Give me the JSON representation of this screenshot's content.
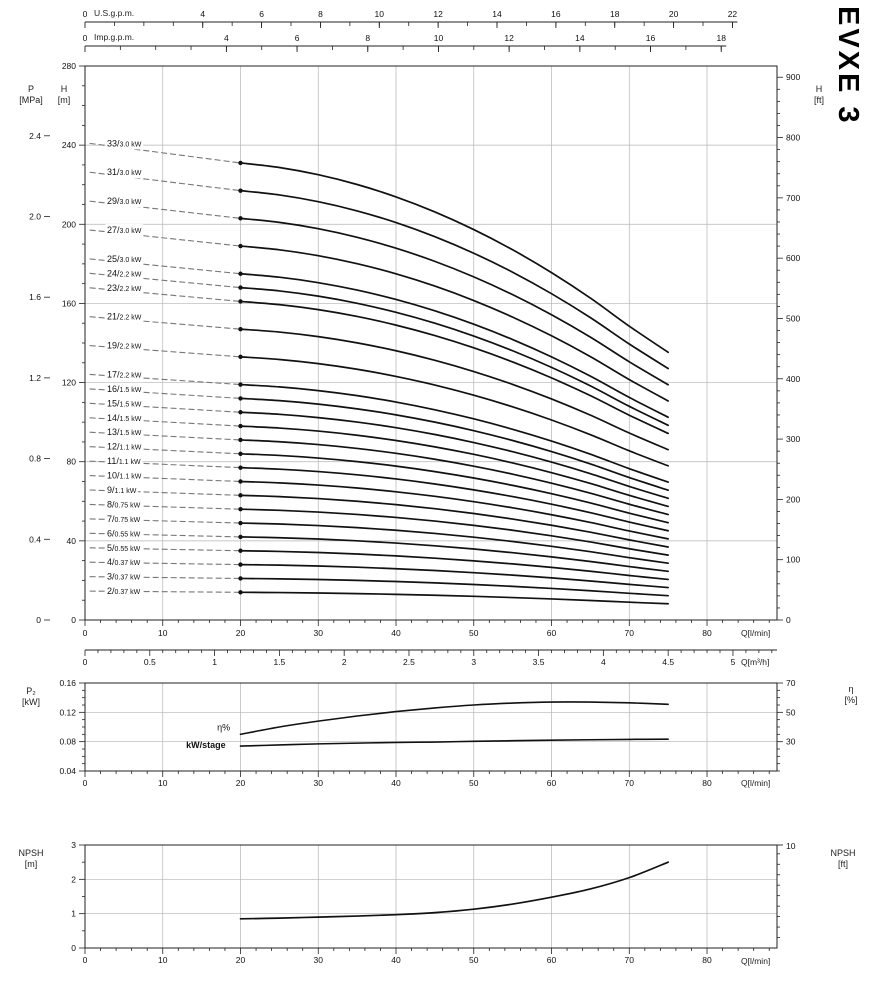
{
  "labels": {
    "model": "EVXE 3",
    "p": "P",
    "p_unit": "[MPa]",
    "h": "H",
    "h_m_unit": "[m]",
    "h_ft_unit": "[ft]",
    "p2": "P₂",
    "p2_unit": "[kW]",
    "eta": "η",
    "eta_unit": "[%]",
    "npsh": "NPSH",
    "npsh_m_unit": "[m]",
    "npsh_ft_unit": "[ft]",
    "q_lmin": "Q[l/min]",
    "q_m3h": "Q[m³/h]",
    "us": "U.S.g.p.m.",
    "imp": "Imp.g.p.m."
  },
  "style": {
    "bg": "#ffffff",
    "curve": "#111111",
    "grid": "#b5b5b5",
    "axis": "#222222",
    "dash": "#777777",
    "text": "#111111"
  },
  "top_axes": {
    "us": {
      "title": "U.S.g.p.m.",
      "ticks": [
        0,
        4,
        6,
        8,
        10,
        12,
        14,
        16,
        18,
        20,
        22
      ],
      "lmin_per_unit": 3.785
    },
    "imp": {
      "title": "Imp.g.p.m.",
      "ticks": [
        0,
        4,
        6,
        8,
        10,
        12,
        14,
        16,
        18
      ],
      "lmin_per_unit": 4.546
    }
  },
  "chart_data": [
    {
      "id": "head-curves",
      "type": "line",
      "title": "EVXE 3 multistage pump head curves",
      "x_axis": {
        "label": "Q[l/min]",
        "min": 0,
        "max": 89,
        "ticks": [
          0,
          10,
          20,
          30,
          40,
          50,
          60,
          70,
          80
        ],
        "minor_step": 2
      },
      "x_axis2": {
        "label": "Q[m³/h]",
        "ticks": [
          0,
          0.5,
          1,
          1.5,
          2,
          2.5,
          3,
          3.5,
          4,
          4.5,
          5
        ],
        "tick_labels": [
          "0",
          "0.5",
          "1",
          "1.5",
          "2",
          "2.5",
          "3",
          "3.5",
          "4",
          "4.5",
          "5"
        ],
        "lmin_per_unit": 16.667,
        "minor_step": 0.1
      },
      "y_axis_left": {
        "label": "H [m]",
        "min": 0,
        "max": 280,
        "ticks": [
          0,
          40,
          80,
          120,
          160,
          200,
          240,
          280
        ],
        "minor_step": 10
      },
      "y_axis_left_outer": {
        "label": "P [MPa]",
        "ticks": [
          0,
          0.4,
          0.8,
          1.2,
          1.6,
          2.0,
          2.4
        ],
        "tick_labels": [
          "0",
          "0.4",
          "0.8",
          "1.2",
          "1.6",
          "2.0",
          "2.4"
        ],
        "m_per_unit": 101.97
      },
      "y_axis_right": {
        "label": "H [ft]",
        "ticks": [
          0,
          100,
          200,
          300,
          400,
          500,
          600,
          700,
          800,
          900
        ],
        "minor_step": 20,
        "m_per_ft": 0.3048
      },
      "flow_lmin": [
        20,
        25,
        30,
        35,
        40,
        45,
        50,
        55,
        60,
        65,
        70,
        75
      ],
      "head_per_stage_m": [
        7.0,
        6.93,
        6.82,
        6.67,
        6.48,
        6.25,
        5.98,
        5.67,
        5.32,
        4.93,
        4.5,
        4.1
      ],
      "label_line_head_per_stage_m": 7.3,
      "curve_start_marker_lmin": 20,
      "curves": [
        {
          "stages": 33,
          "power": "3.0 kW"
        },
        {
          "stages": 31,
          "power": "3.0 kW"
        },
        {
          "stages": 29,
          "power": "3.0 kW"
        },
        {
          "stages": 27,
          "power": "3.0 kW"
        },
        {
          "stages": 25,
          "power": "3.0 kW"
        },
        {
          "stages": 24,
          "power": "2.2 kW"
        },
        {
          "stages": 23,
          "power": "2.2 kW"
        },
        {
          "stages": 21,
          "power": "2.2 kW"
        },
        {
          "stages": 19,
          "power": "2.2 kW"
        },
        {
          "stages": 17,
          "power": "2.2 kW"
        },
        {
          "stages": 16,
          "power": "1.5 kW"
        },
        {
          "stages": 15,
          "power": "1.5 kW"
        },
        {
          "stages": 14,
          "power": "1.5 kW"
        },
        {
          "stages": 13,
          "power": "1.5 kW"
        },
        {
          "stages": 12,
          "power": "1.1 kW"
        },
        {
          "stages": 11,
          "power": "1.1 kW"
        },
        {
          "stages": 10,
          "power": "1.1 kW"
        },
        {
          "stages": 9,
          "power": "1.1 kW"
        },
        {
          "stages": 8,
          "power": "0.75 kW"
        },
        {
          "stages": 7,
          "power": "0.75 kW"
        },
        {
          "stages": 6,
          "power": "0.55 kW"
        },
        {
          "stages": 5,
          "power": "0.55 kW"
        },
        {
          "stages": 4,
          "power": "0.37 kW"
        },
        {
          "stages": 3,
          "power": "0.37 kW"
        },
        {
          "stages": 2,
          "power": "0.37 kW"
        }
      ]
    },
    {
      "id": "power-efficiency",
      "type": "line",
      "x_axis": {
        "label": "Q[l/min]",
        "min": 0,
        "max": 89,
        "ticks": [
          0,
          10,
          20,
          30,
          40,
          50,
          60,
          70,
          80
        ],
        "minor_step": 2
      },
      "y_axis_left": {
        "label": "P₂ [kW]",
        "min": 0.04,
        "max": 0.16,
        "ticks": [
          0.04,
          0.08,
          0.12,
          0.16
        ],
        "tick_labels": [
          "0.04",
          "0.08",
          "0.12",
          "0.16"
        ],
        "minor_step": 0.01
      },
      "y_axis_right": {
        "label": "η [%]",
        "min": 10,
        "max": 70,
        "ticks": [
          30,
          50,
          70
        ],
        "minor_step": 5
      },
      "x": [
        20,
        25,
        30,
        35,
        40,
        45,
        50,
        55,
        60,
        65,
        70,
        75
      ],
      "series": [
        {
          "name": "η%",
          "axis": "right",
          "values": [
            35,
            40,
            44,
            47.5,
            50.5,
            53,
            55,
            56.3,
            57,
            57,
            56.5,
            55.5
          ]
        },
        {
          "name": "kW/stage",
          "axis": "left",
          "values": [
            0.074,
            0.0755,
            0.077,
            0.078,
            0.079,
            0.0795,
            0.0805,
            0.0813,
            0.082,
            0.0826,
            0.0831,
            0.0834
          ]
        }
      ],
      "annotations": [
        {
          "text": "η%",
          "q": 17,
          "kw": 0.095,
          "bold": false
        },
        {
          "text": "kW/stage",
          "q": 13,
          "kw": 0.0715,
          "bold": true
        }
      ]
    },
    {
      "id": "npsh",
      "type": "line",
      "x_axis": {
        "label": "Q[l/min]",
        "min": 0,
        "max": 89,
        "ticks": [
          0,
          10,
          20,
          30,
          40,
          50,
          60,
          70,
          80
        ],
        "minor_step": 2
      },
      "y_axis_left": {
        "label": "NPSH [m]",
        "min": 0,
        "max": 3,
        "ticks": [
          0,
          1,
          2,
          3
        ],
        "minor_step": 0.5
      },
      "y_axis_right": {
        "label": "NPSH [ft]",
        "ticks": [
          10
        ],
        "m_per_ft": 0.3048,
        "minor_step_ft": 1
      },
      "x": [
        20,
        25,
        30,
        35,
        40,
        45,
        50,
        55,
        60,
        65,
        70,
        75
      ],
      "series": [
        {
          "name": "NPSH",
          "axis": "left",
          "values": [
            0.85,
            0.87,
            0.9,
            0.93,
            0.97,
            1.03,
            1.13,
            1.28,
            1.48,
            1.72,
            2.05,
            2.5
          ]
        }
      ]
    }
  ]
}
